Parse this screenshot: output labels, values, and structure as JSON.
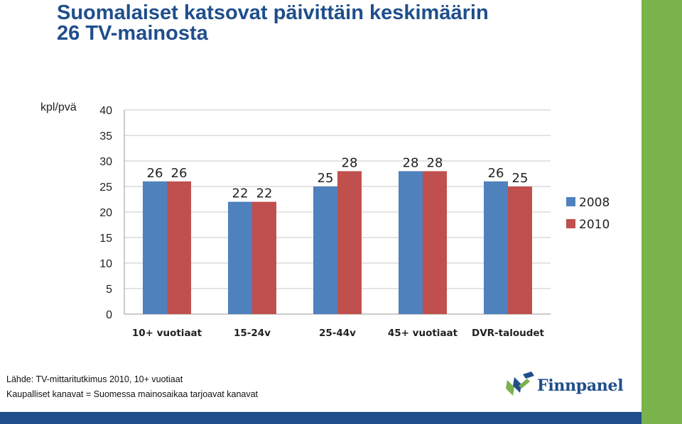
{
  "title_line1": "Suomalaiset katsovat päivittäin keskimäärin",
  "title_line2": "26 TV-mainosta",
  "source_line1": "Lähde: TV-mittaritutkimus 2010, 10+ vuotiaat",
  "source_line2": "Kaupalliset kanavat = Suomessa mainosaikaa tarjoavat kanavat",
  "logo_text": "Finnpanel",
  "colors": {
    "title": "#1f4e8c",
    "series_2008": "#4f81bd",
    "series_2010": "#c0504d",
    "accent_green": "#7ab24b",
    "accent_blue": "#1f4e8c"
  },
  "chart_data": {
    "type": "bar",
    "ylabel": "kpl/pvä",
    "ylim": [
      0,
      40
    ],
    "yticks": [
      0,
      5,
      10,
      15,
      20,
      25,
      30,
      35,
      40
    ],
    "categories": [
      "10+ vuotiaat",
      "15-24v",
      "25-44v",
      "45+ vuotiaat",
      "DVR-taloudet"
    ],
    "series": [
      {
        "name": "2008",
        "values": [
          26,
          22,
          25,
          28,
          26
        ]
      },
      {
        "name": "2010",
        "values": [
          26,
          22,
          28,
          28,
          25
        ]
      }
    ],
    "grid": true,
    "legend": "right"
  }
}
